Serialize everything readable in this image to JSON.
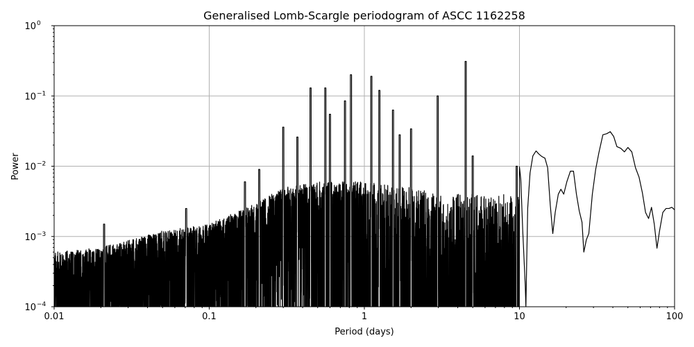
{
  "chart_data": {
    "type": "line",
    "title": "Generalised Lomb-Scargle periodogram of ASCC 1162258",
    "xlabel": "Period (days)",
    "ylabel": "Power",
    "xscale": "log",
    "yscale": "log",
    "xlim": [
      0.01,
      100
    ],
    "ylim": [
      0.0001,
      1
    ],
    "grid": true,
    "legend": null,
    "line_color": "#000000",
    "grid_color": "#b0b0b0",
    "x_ticks": [
      {
        "value": 0.01,
        "label": "0.01"
      },
      {
        "value": 0.1,
        "label": "0.1"
      },
      {
        "value": 1,
        "label": "1"
      },
      {
        "value": 10,
        "label": "10"
      },
      {
        "value": 100,
        "label": "100"
      }
    ],
    "y_ticks": [
      {
        "value": 0.0001,
        "base": "10",
        "exp": "−4"
      },
      {
        "value": 0.001,
        "base": "10",
        "exp": "−3"
      },
      {
        "value": 0.01,
        "base": "10",
        "exp": "−2"
      },
      {
        "value": 0.1,
        "base": "10",
        "exp": "−1"
      },
      {
        "value": 1,
        "base": "10",
        "exp": "0"
      }
    ],
    "noise_envelope": {
      "description": "dense noisy periodogram band from 0.01 to ~4 days; upper envelope in power",
      "period": [
        0.01,
        0.02,
        0.05,
        0.1,
        0.2,
        0.3,
        0.5,
        1.0,
        2.0,
        3.0
      ],
      "upper_power": [
        0.0006,
        0.0007,
        0.0012,
        0.0015,
        0.003,
        0.005,
        0.006,
        0.006,
        0.005,
        0.004
      ]
    },
    "peaks": [
      {
        "period": 0.021,
        "power": 0.0015
      },
      {
        "period": 0.071,
        "power": 0.0025
      },
      {
        "period": 0.17,
        "power": 0.006
      },
      {
        "period": 0.21,
        "power": 0.009
      },
      {
        "period": 0.3,
        "power": 0.036
      },
      {
        "period": 0.37,
        "power": 0.026
      },
      {
        "period": 0.45,
        "power": 0.13
      },
      {
        "period": 0.56,
        "power": 0.13
      },
      {
        "period": 0.6,
        "power": 0.055
      },
      {
        "period": 0.75,
        "power": 0.085
      },
      {
        "period": 0.82,
        "power": 0.2
      },
      {
        "period": 1.11,
        "power": 0.19
      },
      {
        "period": 1.25,
        "power": 0.12
      },
      {
        "period": 1.53,
        "power": 0.063
      },
      {
        "period": 1.69,
        "power": 0.028
      },
      {
        "period": 2.0,
        "power": 0.034
      },
      {
        "period": 2.97,
        "power": 0.1
      },
      {
        "period": 4.5,
        "power": 0.31
      },
      {
        "period": 5.0,
        "power": 0.014
      },
      {
        "period": 9.6,
        "power": 0.01
      },
      {
        "period": 13.5,
        "power": 0.017
      },
      {
        "period": 17.5,
        "power": 0.009
      },
      {
        "period": 28.0,
        "power": 0.031
      },
      {
        "period": 36.0,
        "power": 0.018
      },
      {
        "period": 48.0,
        "power": 0.003
      },
      {
        "period": 65.0,
        "power": 0.0025
      },
      {
        "period": 100.0,
        "power": 0.011
      }
    ],
    "smooth_tail": {
      "description": "smooth curve for periods > ~10 days (period, power)",
      "points": [
        [
          10.0,
          0.0098
        ],
        [
          10.2,
          0.0065
        ],
        [
          10.5,
          0.0012
        ],
        [
          10.9,
          0.0002
        ],
        [
          11.0,
          0.0001
        ],
        [
          11.3,
          0.0025
        ],
        [
          11.7,
          0.008
        ],
        [
          12.2,
          0.014
        ],
        [
          12.8,
          0.0165
        ],
        [
          13.3,
          0.015
        ],
        [
          13.9,
          0.0138
        ],
        [
          14.6,
          0.013
        ],
        [
          15.2,
          0.0095
        ],
        [
          15.8,
          0.0028
        ],
        [
          16.4,
          0.0011
        ],
        [
          17.0,
          0.0022
        ],
        [
          17.8,
          0.004
        ],
        [
          18.5,
          0.0047
        ],
        [
          19.3,
          0.004
        ],
        [
          20.2,
          0.006
        ],
        [
          21.3,
          0.0085
        ],
        [
          22.3,
          0.0085
        ],
        [
          23.3,
          0.004
        ],
        [
          24.3,
          0.0023
        ],
        [
          25.3,
          0.0016
        ],
        [
          26.0,
          0.0006
        ],
        [
          27.0,
          0.0009
        ],
        [
          28.0,
          0.0011
        ],
        [
          29.5,
          0.004
        ],
        [
          31.0,
          0.009
        ],
        [
          32.5,
          0.0155
        ],
        [
          34.5,
          0.028
        ],
        [
          36.5,
          0.029
        ],
        [
          38.5,
          0.031
        ],
        [
          40.5,
          0.0265
        ],
        [
          42.5,
          0.019
        ],
        [
          45.0,
          0.018
        ],
        [
          47.5,
          0.016
        ],
        [
          50.0,
          0.0185
        ],
        [
          53.0,
          0.016
        ],
        [
          56.0,
          0.0095
        ],
        [
          59.0,
          0.007
        ],
        [
          62.0,
          0.0042
        ],
        [
          65.0,
          0.0022
        ],
        [
          68.0,
          0.0018
        ],
        [
          71.0,
          0.0026
        ],
        [
          74.0,
          0.0015
        ],
        [
          77.0,
          0.00068
        ],
        [
          80.0,
          0.0012
        ],
        [
          84.0,
          0.0022
        ],
        [
          88.0,
          0.0025
        ],
        [
          92.0,
          0.0025
        ],
        [
          96.0,
          0.0026
        ],
        [
          100.0,
          0.0024
        ]
      ]
    }
  }
}
